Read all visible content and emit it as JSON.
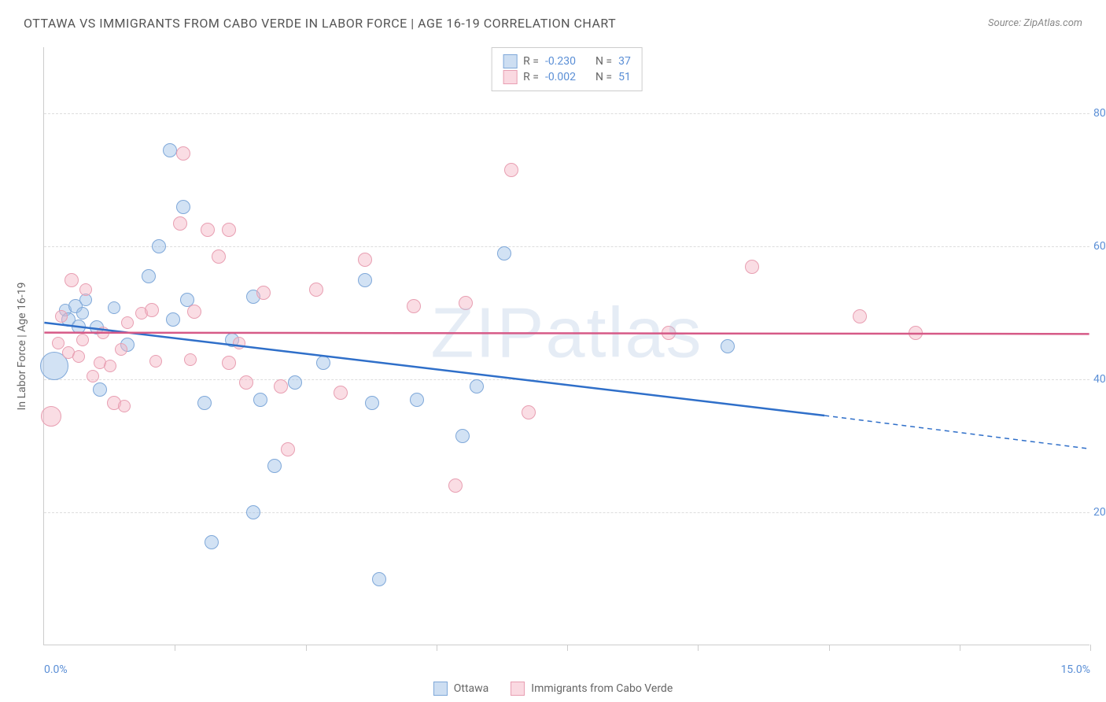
{
  "title": "OTTAWA VS IMMIGRANTS FROM CABO VERDE IN LABOR FORCE | AGE 16-19 CORRELATION CHART",
  "source": "Source: ZipAtlas.com",
  "ylabel": "In Labor Force | Age 16-19",
  "watermark": "ZIPatlas",
  "chart": {
    "type": "scatter",
    "xlim": [
      0,
      15
    ],
    "ylim": [
      0,
      90
    ],
    "y_ticks": [
      20,
      40,
      60,
      80
    ],
    "y_tick_labels": [
      "20.0%",
      "40.0%",
      "60.0%",
      "80.0%"
    ],
    "x_minor_ticks": [
      1.875,
      3.75,
      5.625,
      7.5,
      9.375,
      11.25,
      13.125,
      15
    ],
    "x_tick_labels": {
      "0": "0.0%",
      "15": "15.0%"
    },
    "background_color": "#ffffff",
    "grid_color": "#dddddd",
    "axis_color": "#cccccc",
    "label_color": "#5b8fd6",
    "series": [
      {
        "name": "Ottawa",
        "color_fill": "rgba(155, 190, 230, 0.45)",
        "color_stroke": "#7fa8d9",
        "trend_color": "#2f6fc9",
        "R": "-0.230",
        "N": "37",
        "trend": {
          "x1": 0,
          "y1": 48.5,
          "x2_solid": 11.2,
          "y2_solid": 34.5,
          "x2_dash": 15,
          "y2_dash": 29.5
        },
        "points": [
          {
            "x": 0.15,
            "y": 42.0,
            "r": 18
          },
          {
            "x": 0.3,
            "y": 50.5,
            "r": 8
          },
          {
            "x": 0.35,
            "y": 49.0,
            "r": 9
          },
          {
            "x": 0.45,
            "y": 51.0,
            "r": 9
          },
          {
            "x": 0.5,
            "y": 48.0,
            "r": 9
          },
          {
            "x": 0.55,
            "y": 50.0,
            "r": 8
          },
          {
            "x": 0.6,
            "y": 52.0,
            "r": 8
          },
          {
            "x": 0.75,
            "y": 47.8,
            "r": 9
          },
          {
            "x": 0.8,
            "y": 38.5,
            "r": 9
          },
          {
            "x": 1.0,
            "y": 50.8,
            "r": 8
          },
          {
            "x": 1.2,
            "y": 45.2,
            "r": 9
          },
          {
            "x": 1.5,
            "y": 55.5,
            "r": 9
          },
          {
            "x": 1.65,
            "y": 60.0,
            "r": 9
          },
          {
            "x": 1.8,
            "y": 74.5,
            "r": 9
          },
          {
            "x": 1.85,
            "y": 49.0,
            "r": 9
          },
          {
            "x": 2.0,
            "y": 66.0,
            "r": 9
          },
          {
            "x": 2.05,
            "y": 52.0,
            "r": 9
          },
          {
            "x": 2.3,
            "y": 36.5,
            "r": 9
          },
          {
            "x": 2.4,
            "y": 15.5,
            "r": 9
          },
          {
            "x": 2.7,
            "y": 46.0,
            "r": 9
          },
          {
            "x": 3.0,
            "y": 20.0,
            "r": 9
          },
          {
            "x": 3.0,
            "y": 52.5,
            "r": 9
          },
          {
            "x": 3.1,
            "y": 37.0,
            "r": 9
          },
          {
            "x": 3.3,
            "y": 27.0,
            "r": 9
          },
          {
            "x": 3.6,
            "y": 39.5,
            "r": 9
          },
          {
            "x": 4.0,
            "y": 42.5,
            "r": 9
          },
          {
            "x": 4.6,
            "y": 55.0,
            "r": 9
          },
          {
            "x": 4.7,
            "y": 36.5,
            "r": 9
          },
          {
            "x": 4.8,
            "y": 10.0,
            "r": 9
          },
          {
            "x": 5.35,
            "y": 37.0,
            "r": 9
          },
          {
            "x": 6.0,
            "y": 31.5,
            "r": 9
          },
          {
            "x": 6.2,
            "y": 39.0,
            "r": 9
          },
          {
            "x": 6.6,
            "y": 59.0,
            "r": 9
          },
          {
            "x": 9.8,
            "y": 45.0,
            "r": 9
          }
        ]
      },
      {
        "name": "Immigrants from Cabo Verde",
        "color_fill": "rgba(245, 180, 195, 0.45)",
        "color_stroke": "#e89fb2",
        "trend_color": "#d65a87",
        "R": "-0.002",
        "N": "51",
        "trend": {
          "x1": 0,
          "y1": 47.0,
          "x2_solid": 15,
          "y2_solid": 46.8,
          "x2_dash": 15,
          "y2_dash": 46.8
        },
        "points": [
          {
            "x": 0.1,
            "y": 34.5,
            "r": 13
          },
          {
            "x": 0.2,
            "y": 45.5,
            "r": 8
          },
          {
            "x": 0.25,
            "y": 49.5,
            "r": 8
          },
          {
            "x": 0.35,
            "y": 44.0,
            "r": 8
          },
          {
            "x": 0.4,
            "y": 55.0,
            "r": 9
          },
          {
            "x": 0.5,
            "y": 43.5,
            "r": 8
          },
          {
            "x": 0.55,
            "y": 46.0,
            "r": 8
          },
          {
            "x": 0.6,
            "y": 53.5,
            "r": 8
          },
          {
            "x": 0.7,
            "y": 40.5,
            "r": 8
          },
          {
            "x": 0.8,
            "y": 42.5,
            "r": 8
          },
          {
            "x": 0.85,
            "y": 47.0,
            "r": 8
          },
          {
            "x": 0.95,
            "y": 42.0,
            "r": 8
          },
          {
            "x": 1.0,
            "y": 36.5,
            "r": 9
          },
          {
            "x": 1.1,
            "y": 44.5,
            "r": 8
          },
          {
            "x": 1.15,
            "y": 36.0,
            "r": 8
          },
          {
            "x": 1.2,
            "y": 48.5,
            "r": 8
          },
          {
            "x": 1.4,
            "y": 50.0,
            "r": 8
          },
          {
            "x": 1.55,
            "y": 50.5,
            "r": 9
          },
          {
            "x": 1.6,
            "y": 42.8,
            "r": 8
          },
          {
            "x": 1.95,
            "y": 63.5,
            "r": 9
          },
          {
            "x": 2.0,
            "y": 74.0,
            "r": 9
          },
          {
            "x": 2.1,
            "y": 43.0,
            "r": 8
          },
          {
            "x": 2.15,
            "y": 50.2,
            "r": 9
          },
          {
            "x": 2.35,
            "y": 62.5,
            "r": 9
          },
          {
            "x": 2.5,
            "y": 58.5,
            "r": 9
          },
          {
            "x": 2.65,
            "y": 42.5,
            "r": 9
          },
          {
            "x": 2.65,
            "y": 62.5,
            "r": 9
          },
          {
            "x": 2.8,
            "y": 45.5,
            "r": 8
          },
          {
            "x": 2.9,
            "y": 39.5,
            "r": 9
          },
          {
            "x": 3.15,
            "y": 53.0,
            "r": 9
          },
          {
            "x": 3.4,
            "y": 39.0,
            "r": 9
          },
          {
            "x": 3.5,
            "y": 29.5,
            "r": 9
          },
          {
            "x": 3.9,
            "y": 53.5,
            "r": 9
          },
          {
            "x": 4.25,
            "y": 38.0,
            "r": 9
          },
          {
            "x": 4.6,
            "y": 58.0,
            "r": 9
          },
          {
            "x": 5.3,
            "y": 51.0,
            "r": 9
          },
          {
            "x": 5.9,
            "y": 24.0,
            "r": 9
          },
          {
            "x": 6.05,
            "y": 51.5,
            "r": 9
          },
          {
            "x": 6.7,
            "y": 71.5,
            "r": 9
          },
          {
            "x": 6.95,
            "y": 35.0,
            "r": 9
          },
          {
            "x": 8.95,
            "y": 47.0,
            "r": 9
          },
          {
            "x": 10.15,
            "y": 57.0,
            "r": 9
          },
          {
            "x": 11.7,
            "y": 49.5,
            "r": 9
          },
          {
            "x": 12.5,
            "y": 47.0,
            "r": 9
          }
        ]
      }
    ]
  },
  "legend_top": {
    "rows": [
      {
        "swatch_fill": "rgba(155, 190, 230, 0.5)",
        "swatch_stroke": "#7fa8d9",
        "R_label": "R =",
        "R_val": "-0.230",
        "N_label": "N =",
        "N_val": "37"
      },
      {
        "swatch_fill": "rgba(245, 180, 195, 0.5)",
        "swatch_stroke": "#e89fb2",
        "R_label": "R =",
        "R_val": "-0.002",
        "N_label": "N =",
        "N_val": "51"
      }
    ]
  },
  "legend_bottom": {
    "items": [
      {
        "swatch_fill": "rgba(155, 190, 230, 0.5)",
        "swatch_stroke": "#7fa8d9",
        "label": "Ottawa"
      },
      {
        "swatch_fill": "rgba(245, 180, 195, 0.5)",
        "swatch_stroke": "#e89fb2",
        "label": "Immigrants from Cabo Verde"
      }
    ]
  }
}
